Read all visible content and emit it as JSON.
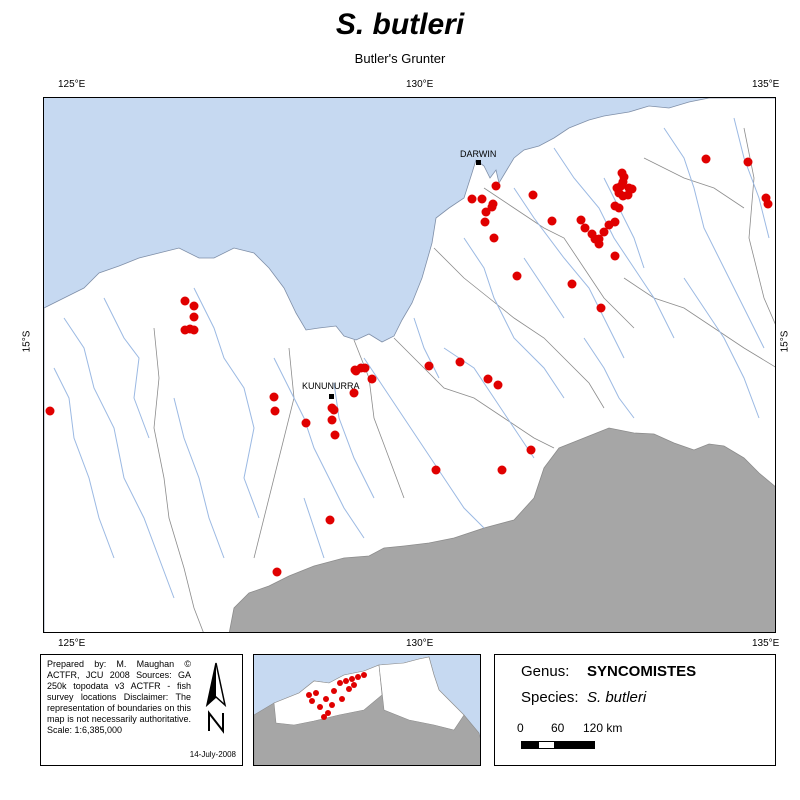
{
  "title": "S. butleri",
  "subtitle": "Butler's Grunter",
  "graticule": {
    "top": [
      "125°E",
      "130°E",
      "135°E"
    ],
    "bottom": [
      "125°E",
      "130°E",
      "135°E"
    ],
    "lat": "15°S"
  },
  "places": [
    {
      "name": "DARWIN"
    },
    {
      "name": "KUNUNURRA"
    }
  ],
  "colors": {
    "sea": "#c6d9f1",
    "land": "#ffffff",
    "outside_land": "#a6a6a6",
    "river": "#9bb9e3",
    "boundary": "#8c8c8c",
    "record": "#e00000"
  },
  "credits": {
    "text": "Prepared by: M. Maughan © ACTFR, JCU 2008 Sources: GA 250k topodata v3 ACTFR - fish survey locations Disclaimer: The representation of boundaries on this map is not necessarily authoritative. Scale: 1:6,385,000",
    "date": "14-July-2008",
    "north_arrow": "north-arrow-icon"
  },
  "legend": {
    "genus_label": "Genus:",
    "genus_value": "SYNCOMISTES",
    "species_label": "Species:",
    "species_value": "S. butleri",
    "scale_labels": [
      "0",
      "60",
      "120 km"
    ]
  }
}
